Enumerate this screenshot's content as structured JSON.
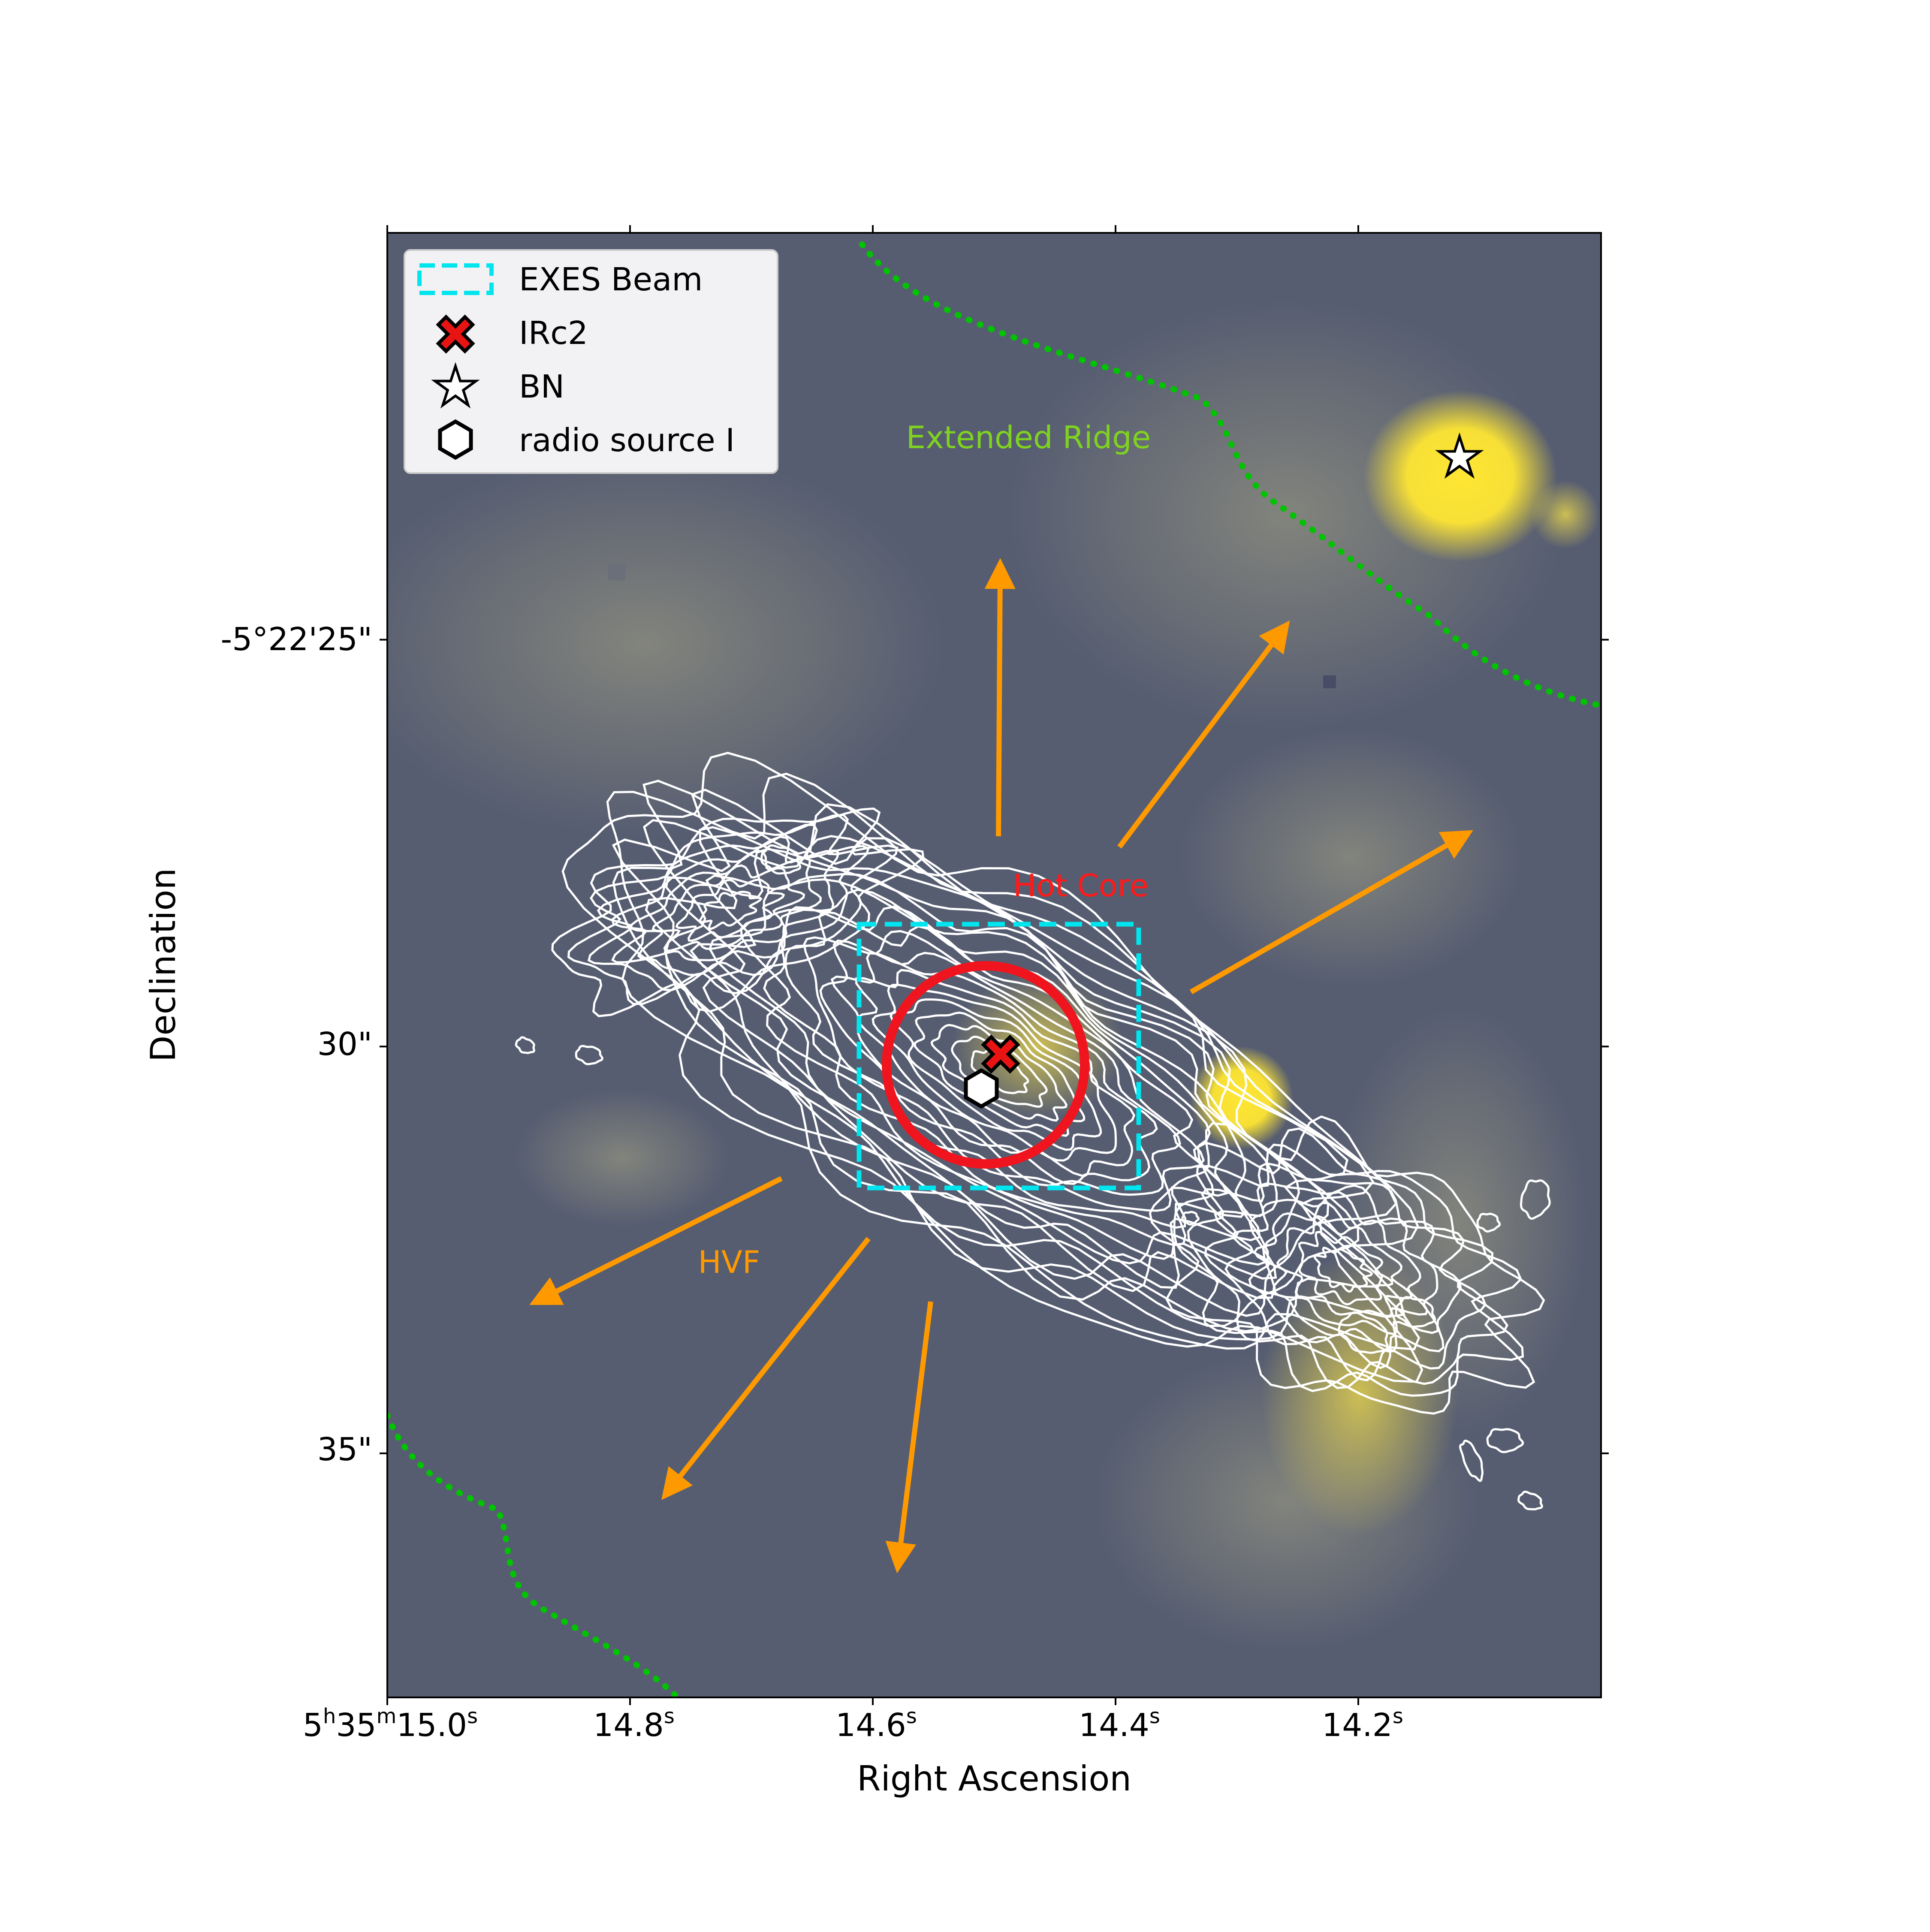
{
  "chart_data": {
    "type": "image",
    "xlabel": "Right Ascension",
    "ylabel": "Declination",
    "x_ticks": [
      {
        "value": 15.0,
        "h": "5",
        "m": "35",
        "s": "15.0"
      },
      {
        "value": 14.8,
        "s": "14.8"
      },
      {
        "value": 14.6,
        "s": "14.6"
      },
      {
        "value": 14.4,
        "s": "14.4"
      },
      {
        "value": 14.2,
        "s": "14.2"
      }
    ],
    "x_units": {
      "h": "h",
      "m": "m",
      "s": "s"
    },
    "y_ticks": [
      {
        "value": 25,
        "label": "-5°22'25\""
      },
      {
        "value": 30,
        "label": "30\""
      },
      {
        "value": 35,
        "label": "35\""
      }
    ],
    "xlim": [
      15.0,
      14.0
    ],
    "ylim": [
      38.0,
      20.0
    ],
    "legend": {
      "placement": "upper-left",
      "entries": [
        {
          "label": "EXES Beam",
          "marker": "dashed-rectangle",
          "color": "#00e5ee"
        },
        {
          "label": "IRc2",
          "marker": "x-filled",
          "color": "#e81414"
        },
        {
          "label": "BN",
          "marker": "star",
          "color": "#ffffff"
        },
        {
          "label": "radio source I",
          "marker": "hexagon",
          "color": "#ffffff"
        }
      ]
    },
    "sources": [
      {
        "name": "IRc2",
        "ra": 14.5,
        "dec": 30.1
      },
      {
        "name": "BN",
        "ra": 14.12,
        "dec": 22.8
      },
      {
        "name": "radio source I",
        "ra": 14.51,
        "dec": 30.5
      }
    ],
    "annotations": [
      {
        "text": "Extended Ridge",
        "color": "#7fd320"
      },
      {
        "text": "Hot Core",
        "color": "#ff1a1a"
      },
      {
        "text": "HVF",
        "color": "#ff9900"
      }
    ],
    "colors": {
      "background": "#565d71",
      "emission": "#ffe633",
      "contours": "#ffffff",
      "outflow_arrows": "#ff9900",
      "ridge_boundary": "#00c400",
      "hot_core_circle": "#f0141e",
      "exes_beam": "#00e5ee"
    }
  }
}
